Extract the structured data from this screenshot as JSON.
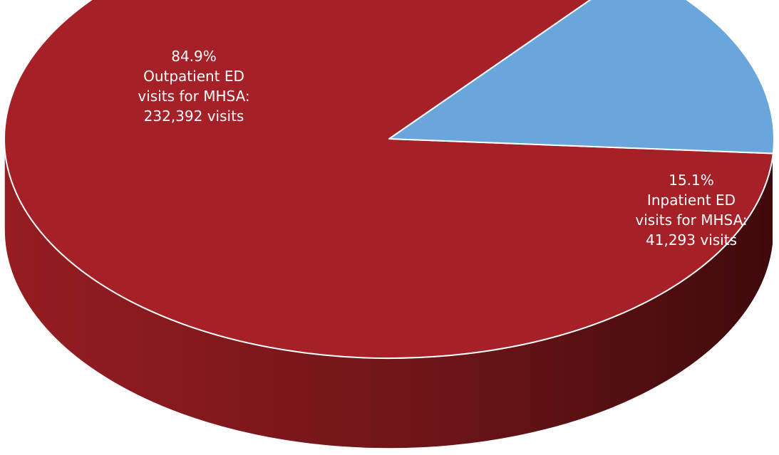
{
  "chart_data": {
    "type": "pie",
    "style": "3d",
    "legend": "none",
    "slices": [
      {
        "percent_label": "84.9%",
        "label_lines": [
          "Outpatient ED",
          "visits for MHSA:",
          "232,392 visits"
        ],
        "value": 232392,
        "share": 0.849,
        "color": "#a52127",
        "side_color": "#7a181c"
      },
      {
        "percent_label": "15.1%",
        "label_lines": [
          "Inpatient ED",
          "visits for MHSA:",
          "41,293 visits"
        ],
        "value": 41293,
        "share": 0.151,
        "color": "#6aa5dc",
        "side_color": "#2a4961"
      }
    ]
  }
}
